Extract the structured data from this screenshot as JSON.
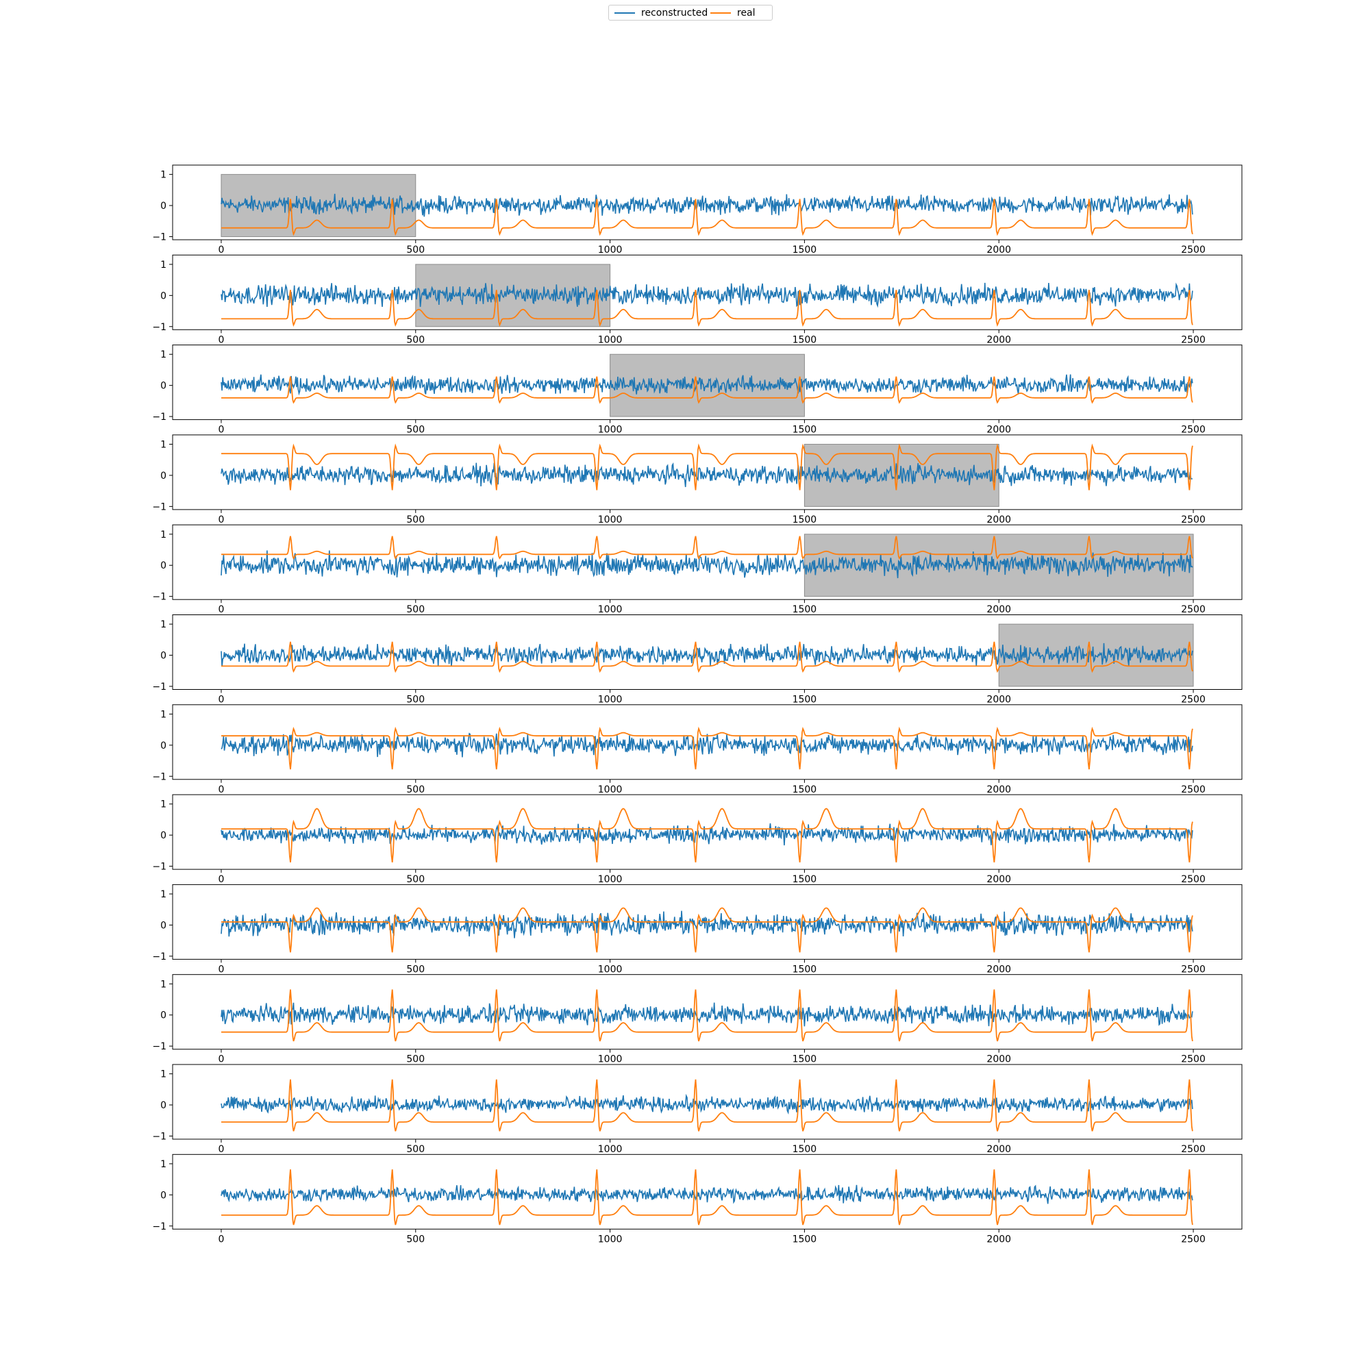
{
  "legend": {
    "items": [
      {
        "label": "reconstructed",
        "color": "#1f77b4"
      },
      {
        "label": "real",
        "color": "#ff7f0e"
      }
    ]
  },
  "chart_data": {
    "type": "line",
    "title": "",
    "xlabel": "",
    "ylabel": "",
    "xlim": [
      -125,
      2625
    ],
    "ylim": [
      -1.1,
      1.3
    ],
    "xticks": [
      0,
      500,
      1000,
      1500,
      2000,
      2500
    ],
    "yticks": [
      -1,
      0,
      1
    ],
    "grid": false,
    "legend_position": "top-center",
    "n_samples": 2500,
    "r_peaks": [
      178,
      440,
      708,
      966,
      1220,
      1488,
      1736,
      1988,
      2232,
      2490
    ],
    "panels": [
      {
        "masked_range": [
          0,
          500
        ],
        "real_offset": -0.72,
        "real_amp": 0.95,
        "twave": 0.25,
        "recon_noise": 0.42
      },
      {
        "masked_range": [
          500,
          1000
        ],
        "real_offset": -0.75,
        "real_amp": 0.95,
        "twave": 0.3,
        "recon_noise": 0.48
      },
      {
        "masked_range": [
          1000,
          1500
        ],
        "real_offset": -0.4,
        "real_amp": 0.7,
        "twave": 0.15,
        "recon_noise": 0.4
      },
      {
        "masked_range": [
          1500,
          2000
        ],
        "real_offset": 0.7,
        "real_amp": -1.2,
        "twave": -0.35,
        "recon_noise": 0.45
      },
      {
        "masked_range": [
          1500,
          2500
        ],
        "real_offset": 0.35,
        "real_amp": 0.6,
        "twave": 0.1,
        "recon_noise": 0.5
      },
      {
        "masked_range": [
          2000,
          2500
        ],
        "real_offset": -0.35,
        "real_amp": 0.8,
        "twave": 0.15,
        "recon_noise": 0.45
      },
      {
        "masked_range": null,
        "real_offset": 0.3,
        "real_amp": -1.1,
        "twave": 0.1,
        "recon_noise": 0.45
      },
      {
        "masked_range": null,
        "real_offset": 0.2,
        "real_amp": -1.1,
        "twave": 0.65,
        "recon_noise": 0.4
      },
      {
        "masked_range": null,
        "real_offset": 0.1,
        "real_amp": -1.0,
        "twave": 0.45,
        "recon_noise": 0.5
      },
      {
        "masked_range": null,
        "real_offset": -0.55,
        "real_amp": 1.4,
        "twave": 0.3,
        "recon_noise": 0.45
      },
      {
        "masked_range": null,
        "real_offset": -0.55,
        "real_amp": 1.4,
        "twave": 0.3,
        "recon_noise": 0.35
      },
      {
        "masked_range": null,
        "real_offset": -0.65,
        "real_amp": 1.5,
        "twave": 0.3,
        "recon_noise": 0.35
      }
    ]
  }
}
